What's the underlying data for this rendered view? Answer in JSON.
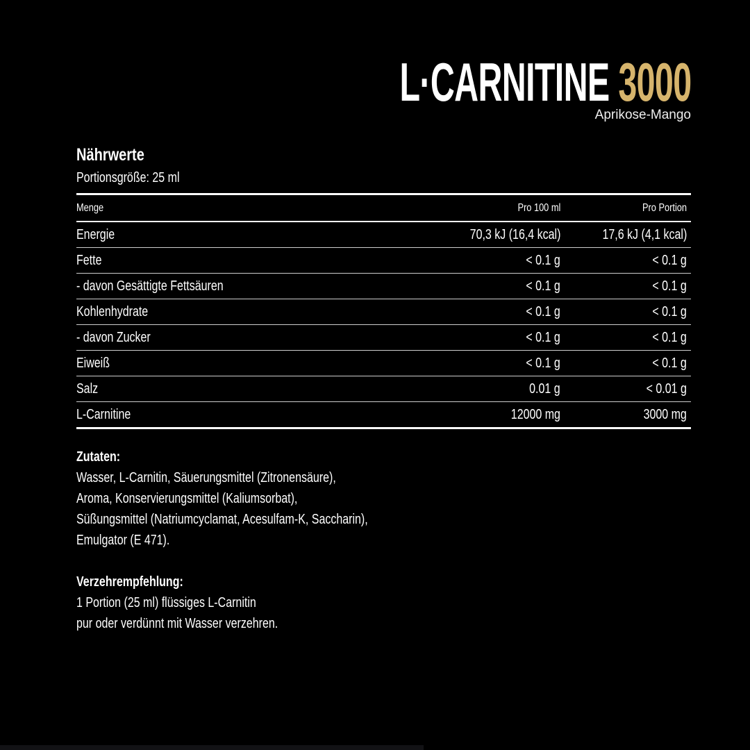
{
  "product": {
    "name": "L·CARNITINE",
    "strength": "3000",
    "flavor": "Aprikose-Mango",
    "accent_color": "#d6b46c"
  },
  "nutrition": {
    "heading": "Nährwerte",
    "portion": "Portionsgröße: 25 ml",
    "columns": [
      "Menge",
      "Pro 100 ml",
      "Pro Portion"
    ],
    "rows": [
      [
        "Energie",
        "70,3 kJ (16,4 kcal)",
        "17,6 kJ (4,1 kcal)"
      ],
      [
        "Fette",
        "< 0.1 g",
        "< 0.1 g"
      ],
      [
        "- davon Gesättigte Fettsäuren",
        "< 0.1 g",
        "< 0.1 g"
      ],
      [
        "Kohlenhydrate",
        "< 0.1 g",
        "< 0.1 g"
      ],
      [
        "- davon Zucker",
        "< 0.1 g",
        "< 0.1 g"
      ],
      [
        "Eiweiß",
        "< 0.1 g",
        "< 0.1 g"
      ],
      [
        "Salz",
        "0.01 g",
        "< 0.01 g"
      ],
      [
        "L-Carnitine",
        "12000 mg",
        "3000 mg"
      ]
    ]
  },
  "ingredients": {
    "heading": "Zutaten:",
    "lines": [
      "Wasser, L-Carnitin, Säuerungsmittel (Zitronensäure),",
      "Aroma, Konservierungsmittel (Kaliumsorbat),",
      "Süßungsmittel (Natriumcyclamat, Acesulfam-K, Saccharin),",
      "Emulgator (E 471)."
    ]
  },
  "recommendation": {
    "heading": "Verzehrempfehlung:",
    "lines": [
      "1 Portion (25 ml) flüssiges L-Carnitin",
      "pur oder verdünnt mit Wasser verzehren."
    ]
  }
}
